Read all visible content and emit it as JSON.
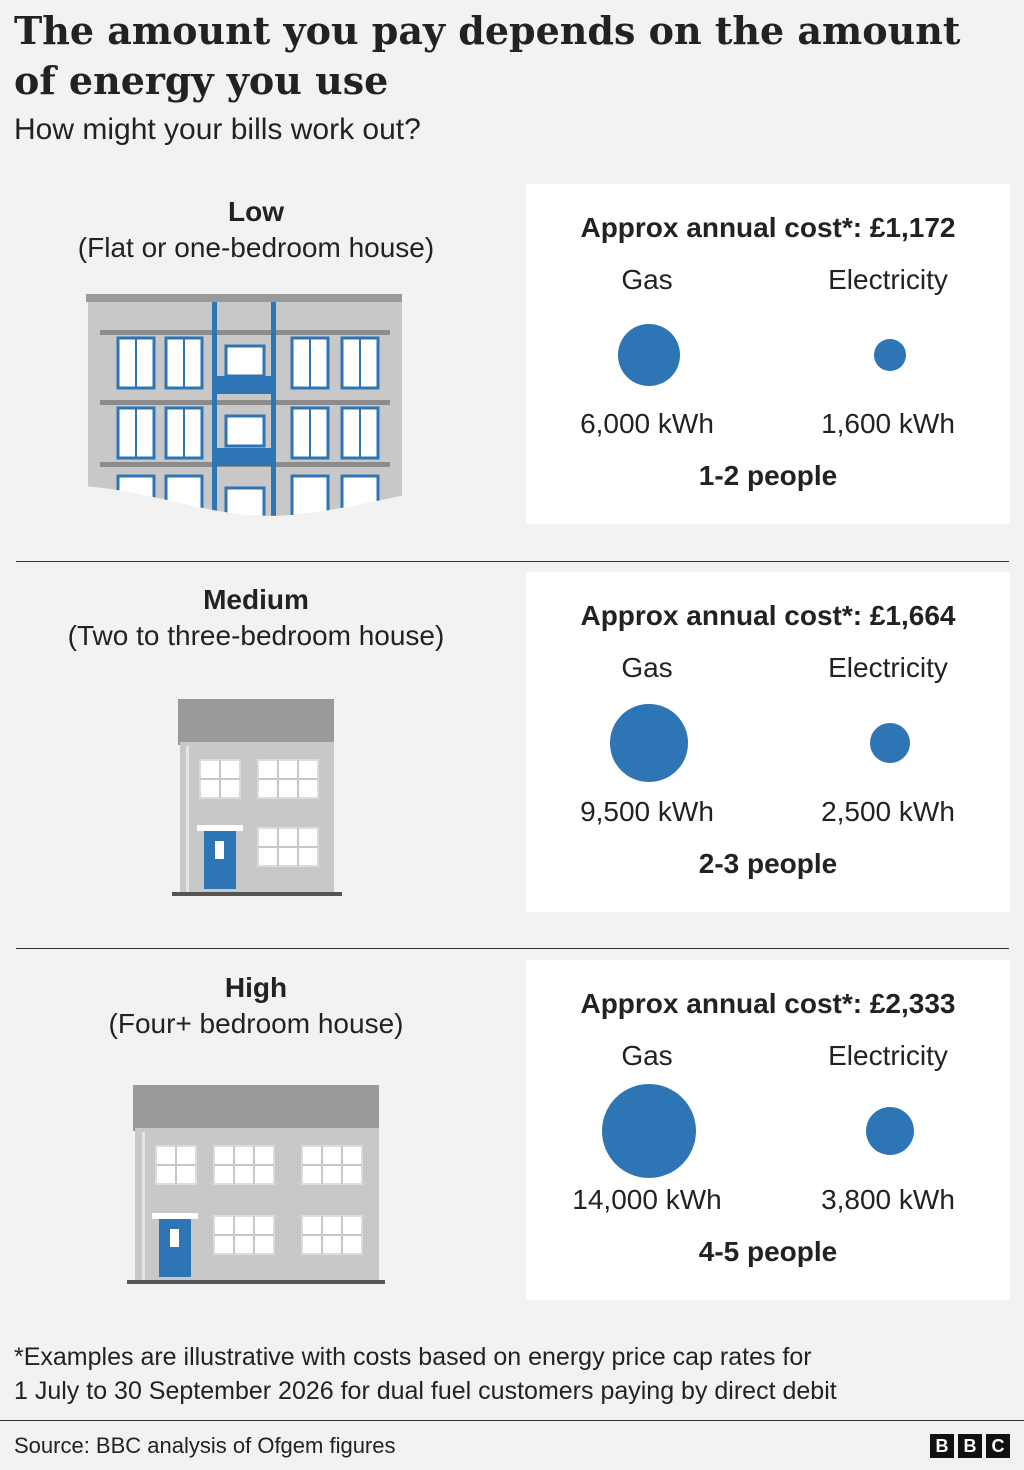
{
  "title": "The amount you pay depends on the amount of energy you use",
  "subtitle": "How might your bills work out?",
  "colors": {
    "bubble": "#2e75b6",
    "card": "#ffffff",
    "background": "#f2f2f2"
  },
  "chart_data": {
    "type": "bubble",
    "title": "The amount you pay depends on the amount of energy you use",
    "subtitle": "How might your bills work out?",
    "categories": [
      "Low",
      "Medium",
      "High"
    ],
    "series": [
      {
        "name": "Gas",
        "values": [
          6000,
          9500,
          14000
        ]
      },
      {
        "name": "Electricity",
        "values": [
          1600,
          2500,
          3800
        ]
      }
    ],
    "annual_cost_gbp": [
      1172,
      1664,
      2333
    ]
  },
  "tiers": [
    {
      "name": "Low",
      "desc": "(Flat or one-bedroom house)",
      "cost": "Approx annual cost*: £1,172",
      "gas_label": "Gas",
      "elec_label": "Electricity",
      "gas_value": "6,000 kWh",
      "elec_value": "1,600 kWh",
      "gas_kwh": 6000,
      "elec_kwh": 1600,
      "people": "1-2 people",
      "illustration": "flat-building-icon"
    },
    {
      "name": "Medium",
      "desc": "(Two to three-bedroom house)",
      "cost": "Approx annual cost*: £1,664",
      "gas_label": "Gas",
      "elec_label": "Electricity",
      "gas_value": "9,500 kWh",
      "elec_value": "2,500 kWh",
      "gas_kwh": 9500,
      "elec_kwh": 2500,
      "people": "2-3 people",
      "illustration": "small-house-icon"
    },
    {
      "name": "High",
      "desc": "(Four+ bedroom house)",
      "cost": "Approx annual cost*: £2,333",
      "gas_label": "Gas",
      "elec_label": "Electricity",
      "gas_value": "14,000 kWh",
      "elec_value": "3,800 kWh",
      "gas_kwh": 14000,
      "elec_kwh": 3800,
      "people": "4-5 people",
      "illustration": "large-house-icon"
    }
  ],
  "note_line1": "*Examples are illustrative with costs based on energy price cap rates for",
  "note_line2": "1 July to 30 September 2026 for dual fuel customers paying by direct debit",
  "source": "Source: BBC analysis of Ofgem figures",
  "logo": [
    "B",
    "B",
    "C"
  ]
}
